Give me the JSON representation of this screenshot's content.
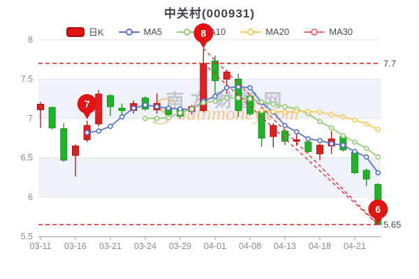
{
  "title": "中关村(000931)",
  "legend": {
    "items": [
      {
        "label": "日K",
        "type": "candle",
        "color": "#e01414"
      },
      {
        "label": "MA5",
        "type": "line",
        "color": "#5470c6"
      },
      {
        "label": "MA10",
        "type": "line",
        "color": "#91cc75"
      },
      {
        "label": "MA20",
        "type": "line",
        "color": "#fac858"
      },
      {
        "label": "MA30",
        "type": "line",
        "color": "#ee6666"
      }
    ]
  },
  "watermark": {
    "cn": "南方财富网",
    "en_initial": "S",
    "en_rest": "outhmoney.com"
  },
  "chart_data": {
    "type": "candlestick",
    "title": "中关村(000931)",
    "ylim": [
      5.5,
      8
    ],
    "y_ticks": [
      "8",
      "7.5",
      "7",
      "6.5",
      "6",
      "5.5"
    ],
    "y_tick_values": [
      8,
      7.5,
      7,
      6.5,
      6,
      5.5
    ],
    "x_tick_labels": [
      "03-11",
      "03-16",
      "03-21",
      "03-24",
      "03-29",
      "04-01",
      "04-08",
      "04-13",
      "04-18",
      "04-21"
    ],
    "x_tick_indices": [
      0,
      3,
      6,
      9,
      12,
      15,
      18,
      21,
      24,
      27
    ],
    "grid": "horizontal-lines-with-alternating-bands",
    "legend_position": "top-center",
    "dates": [
      "03-11",
      "03-14",
      "03-15",
      "03-16",
      "03-17",
      "03-18",
      "03-21",
      "03-22",
      "03-23",
      "03-24",
      "03-25",
      "03-28",
      "03-29",
      "03-30",
      "03-31",
      "04-01",
      "04-06",
      "04-07",
      "04-08",
      "04-11",
      "04-12",
      "04-13",
      "04-14",
      "04-15",
      "04-18",
      "04-19",
      "04-20",
      "04-21",
      "04-22",
      "04-25"
    ],
    "candles": [
      {
        "date": "03-11",
        "open": 7.11,
        "close": 7.18,
        "low": 6.88,
        "high": 7.21
      },
      {
        "date": "03-14",
        "open": 7.14,
        "close": 6.88,
        "low": 6.86,
        "high": 7.15
      },
      {
        "date": "03-15",
        "open": 6.87,
        "close": 6.47,
        "low": 6.45,
        "high": 6.94
      },
      {
        "date": "03-16",
        "open": 6.53,
        "close": 6.65,
        "low": 6.26,
        "high": 6.67
      },
      {
        "date": "03-17",
        "open": 6.73,
        "close": 6.91,
        "low": 6.7,
        "high": 6.97
      },
      {
        "date": "03-18",
        "open": 6.93,
        "close": 7.31,
        "low": 6.9,
        "high": 7.36
      },
      {
        "date": "03-21",
        "open": 7.29,
        "close": 7.15,
        "low": 7.03,
        "high": 7.31
      },
      {
        "date": "03-22",
        "open": 7.13,
        "close": 7.1,
        "low": 7.03,
        "high": 7.19
      },
      {
        "date": "03-23",
        "open": 7.1,
        "close": 7.19,
        "low": 7.06,
        "high": 7.23
      },
      {
        "date": "03-24",
        "open": 7.26,
        "close": 7.12,
        "low": 7.1,
        "high": 7.28
      },
      {
        "date": "03-25",
        "open": 7.11,
        "close": 7.19,
        "low": 7.06,
        "high": 7.32
      },
      {
        "date": "03-28",
        "open": 7.14,
        "close": 7.05,
        "low": 7.02,
        "high": 7.17
      },
      {
        "date": "03-29",
        "open": 7.11,
        "close": 7.03,
        "low": 7.0,
        "high": 7.13
      },
      {
        "date": "03-30",
        "open": 7.09,
        "close": 7.15,
        "low": 7.05,
        "high": 7.17
      },
      {
        "date": "03-31",
        "open": 7.1,
        "close": 7.7,
        "low": 7.08,
        "high": 7.88
      },
      {
        "date": "04-01",
        "open": 7.73,
        "close": 7.48,
        "low": 7.28,
        "high": 7.8
      },
      {
        "date": "04-06",
        "open": 7.5,
        "close": 7.59,
        "low": 7.31,
        "high": 7.62
      },
      {
        "date": "04-07",
        "open": 7.5,
        "close": 7.1,
        "low": 7.02,
        "high": 7.57
      },
      {
        "date": "04-08",
        "open": 7.28,
        "close": 7.06,
        "low": 7.04,
        "high": 7.3
      },
      {
        "date": "04-11",
        "open": 7.09,
        "close": 6.75,
        "low": 6.64,
        "high": 7.11
      },
      {
        "date": "04-12",
        "open": 6.77,
        "close": 6.91,
        "low": 6.63,
        "high": 6.94
      },
      {
        "date": "04-13",
        "open": 6.84,
        "close": 6.71,
        "low": 6.66,
        "high": 6.87
      },
      {
        "date": "04-14",
        "open": 6.71,
        "close": 6.73,
        "low": 6.65,
        "high": 6.8
      },
      {
        "date": "04-15",
        "open": 6.7,
        "close": 6.58,
        "low": 6.56,
        "high": 6.72
      },
      {
        "date": "04-18",
        "open": 6.55,
        "close": 6.66,
        "low": 6.47,
        "high": 6.68
      },
      {
        "date": "04-19",
        "open": 6.65,
        "close": 6.74,
        "low": 6.55,
        "high": 6.84
      },
      {
        "date": "04-20",
        "open": 6.77,
        "close": 6.6,
        "low": 6.58,
        "high": 6.79
      },
      {
        "date": "04-21",
        "open": 6.57,
        "close": 6.31,
        "low": 6.29,
        "high": 6.59
      },
      {
        "date": "04-22",
        "open": 6.34,
        "close": 6.23,
        "low": 6.14,
        "high": 6.36
      },
      {
        "date": "04-25",
        "open": 6.16,
        "close": 5.65,
        "low": 5.65,
        "high": 6.18
      }
    ],
    "series": [
      {
        "name": "MA5",
        "color": "#5470c6",
        "values": [
          null,
          null,
          null,
          null,
          6.82,
          6.84,
          6.9,
          7.02,
          7.13,
          7.17,
          7.15,
          7.13,
          7.12,
          7.11,
          7.22,
          7.28,
          7.39,
          7.4,
          7.39,
          7.2,
          7.08,
          6.91,
          6.83,
          6.74,
          6.72,
          6.68,
          6.66,
          6.58,
          6.51,
          6.31
        ]
      },
      {
        "name": "MA10",
        "color": "#91cc75",
        "values": [
          null,
          null,
          null,
          null,
          null,
          null,
          null,
          null,
          null,
          7.0,
          7.0,
          7.01,
          7.07,
          7.12,
          7.2,
          7.22,
          7.26,
          7.26,
          7.25,
          7.21,
          7.18,
          7.15,
          7.12,
          7.06,
          6.96,
          6.88,
          6.78,
          6.7,
          6.62,
          6.51
        ]
      },
      {
        "name": "MA20",
        "color": "#fac858",
        "values": [
          null,
          null,
          null,
          null,
          null,
          null,
          null,
          null,
          null,
          null,
          null,
          null,
          null,
          null,
          null,
          null,
          null,
          null,
          null,
          7.1,
          7.09,
          7.08,
          7.09,
          7.09,
          7.08,
          7.05,
          7.02,
          6.98,
          6.93,
          6.86
        ]
      },
      {
        "name": "MA30",
        "color": "#ee6666",
        "values": [
          null,
          null,
          null,
          null,
          null,
          null,
          null,
          null,
          null,
          null,
          null,
          null,
          null,
          null,
          null,
          null,
          null,
          null,
          null,
          null,
          null,
          null,
          null,
          null,
          null,
          null,
          null,
          null,
          null,
          null
        ]
      }
    ],
    "markers": [
      {
        "label": "7",
        "index": 4,
        "value": 6.99
      },
      {
        "label": "8",
        "index": 14,
        "value": 7.89
      },
      {
        "label": "6",
        "index": 29,
        "value": 5.65
      }
    ],
    "ref_lines": [
      {
        "value": 7.7,
        "label": "7.7"
      },
      {
        "value": 5.65,
        "label": "5.65"
      }
    ],
    "trend_lines": [
      {
        "from_index": 14,
        "from_value": 7.89,
        "to_index": 29,
        "to_value": 5.65
      },
      {
        "from_index": 14,
        "from_value": 7.7,
        "to_index": 29,
        "to_value": 5.65
      }
    ],
    "colors": {
      "up": "#e02020",
      "up_border": "#ad0e0e",
      "down": "#22b32b",
      "down_border": "#12901a",
      "band": "#f0f2f9",
      "gridline": "#e2e5ee",
      "axis": "#9aa0ab",
      "tick_text": "#8a8a94",
      "annotation": "#e33030",
      "balloon": "#e01414",
      "ref_label_text": "#4b4b52"
    }
  }
}
